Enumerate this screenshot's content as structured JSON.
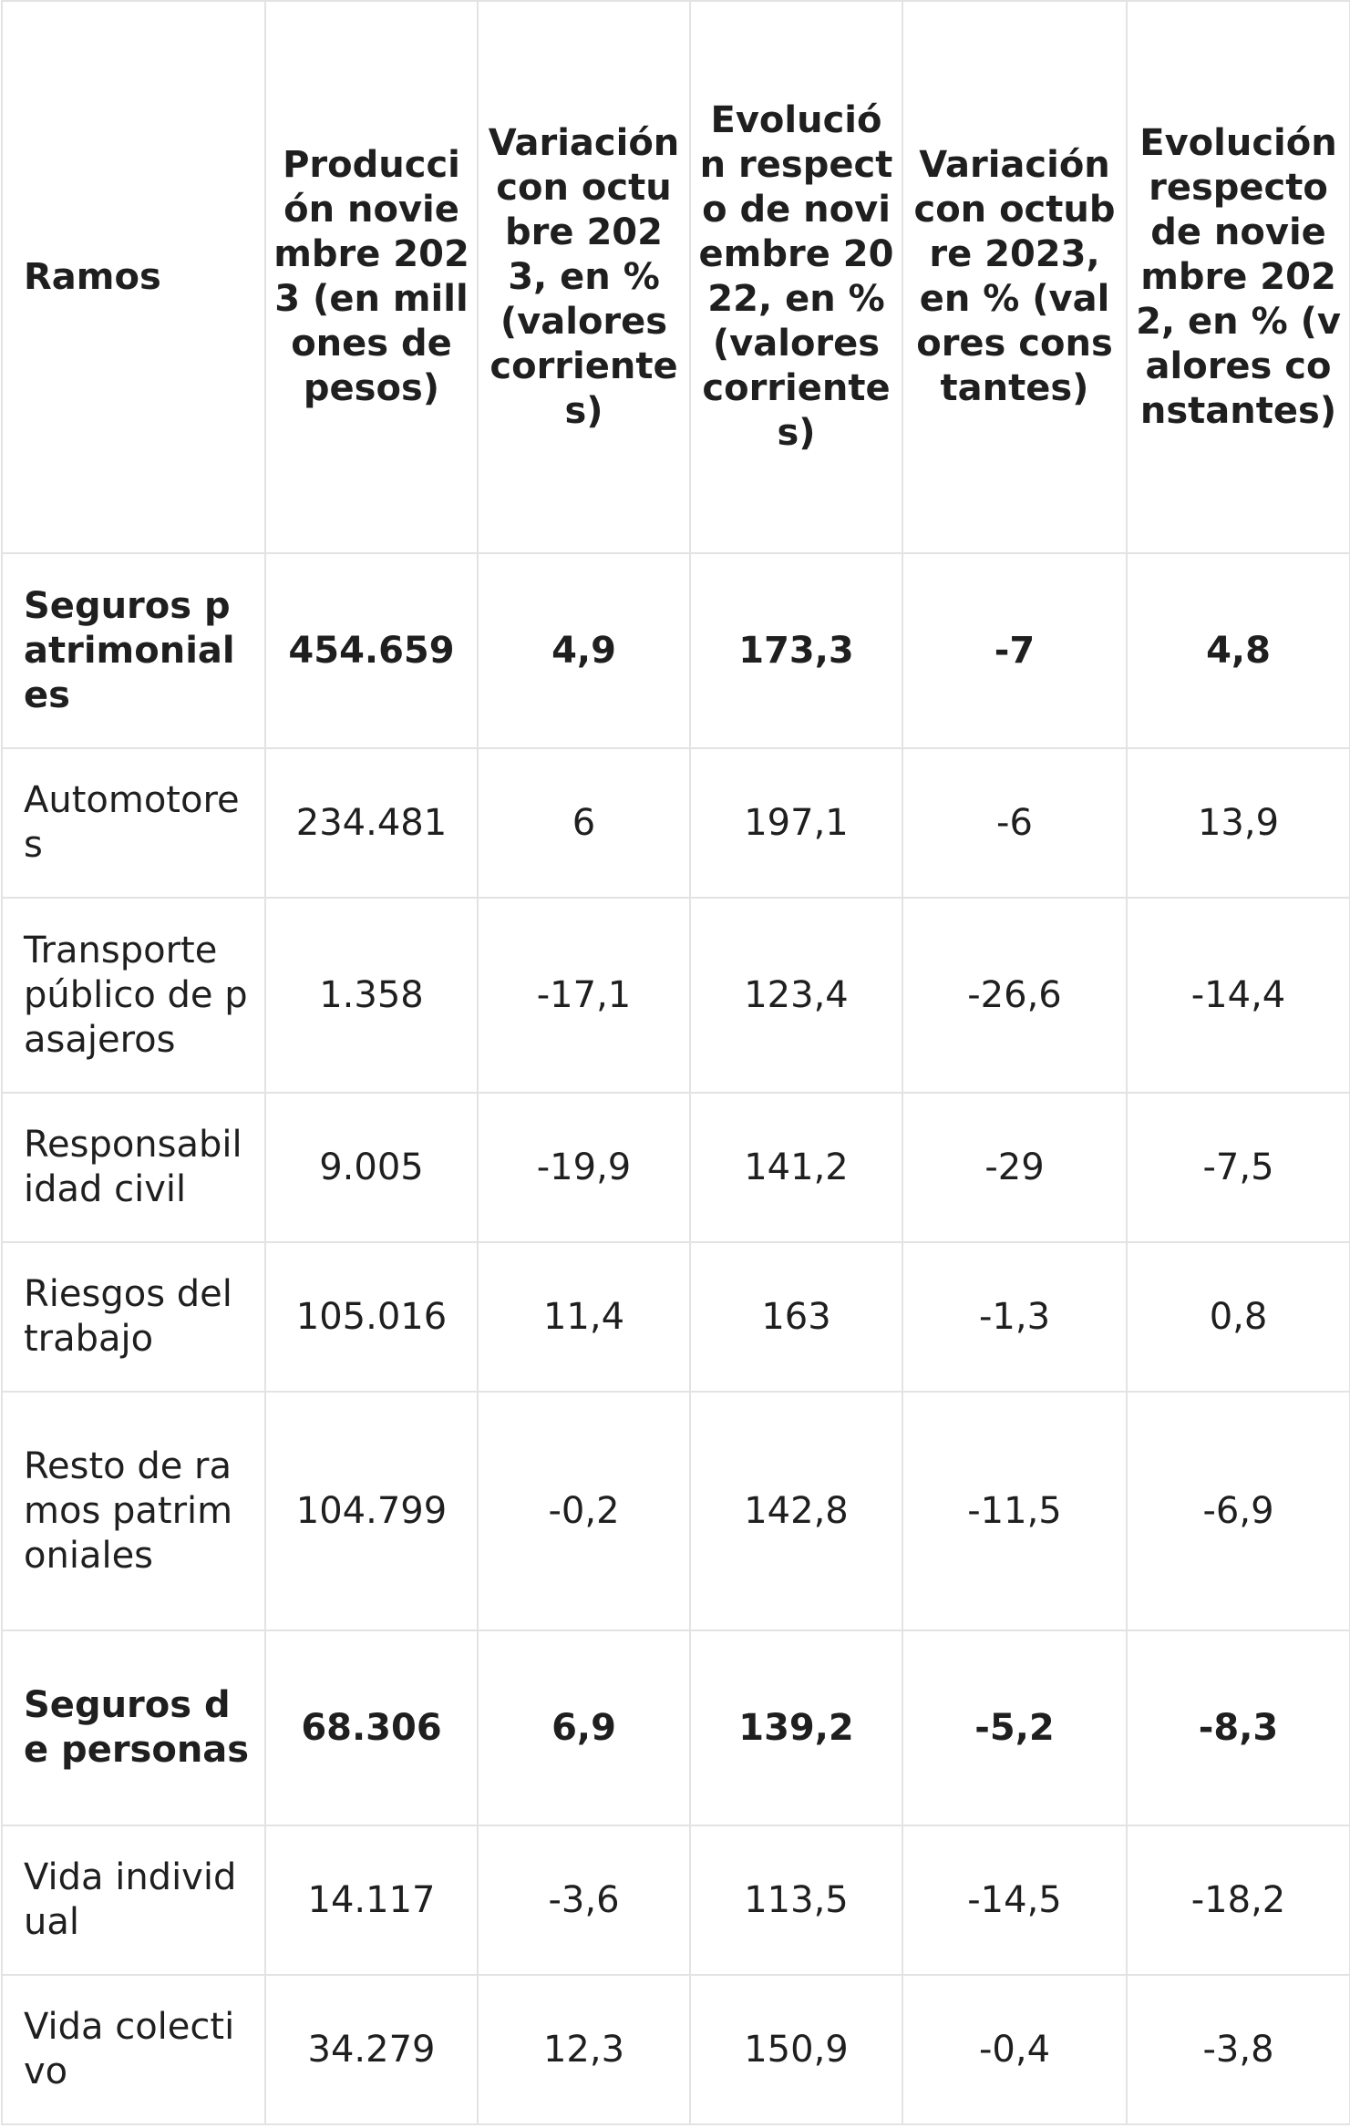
{
  "table": {
    "headers": [
      "Ramos",
      "Producción noviembre 2023 (en millones de pesos)",
      "Variación con octubre 2023, en % (valores corrientes)",
      "Evolución respecto de noviembre 2022, en % (valores corrientes)",
      "Variación con octubre 2023, en % (valores constantes)",
      "Evolución respecto de noviembre 2022, en % (valores constantes)"
    ],
    "rows": [
      [
        "Seguros patrimoniales",
        "454.659",
        "4,9",
        "173,3",
        "-7",
        "4,8"
      ],
      [
        "Automotores",
        "234.481",
        "6",
        "197,1",
        "-6",
        "13,9"
      ],
      [
        "Transporte público de pasajeros",
        "1.358",
        "-17,1",
        "123,4",
        "-26,6",
        "-14,4"
      ],
      [
        "Responsabilidad civil",
        "9.005",
        "-19,9",
        "141,2",
        "-29",
        "-7,5"
      ],
      [
        "Riesgos del trabajo",
        "105.016",
        "11,4",
        "163",
        "-1,3",
        "0,8"
      ],
      [
        "Resto de ramos patrimoniales",
        "104.799",
        "-0,2",
        "142,8",
        "-11,5",
        "-6,9"
      ],
      [
        "Seguros de personas",
        "68.306",
        "6,9",
        "139,2",
        "-5,2",
        "-8,3"
      ],
      [
        "Vida individual",
        "14.117",
        "-3,6",
        "113,5",
        "-14,5",
        "-18,2"
      ],
      [
        "Vida colectivo",
        "34.279",
        "12,3",
        "150,9",
        "-0,4",
        "-3,8"
      ]
    ]
  }
}
